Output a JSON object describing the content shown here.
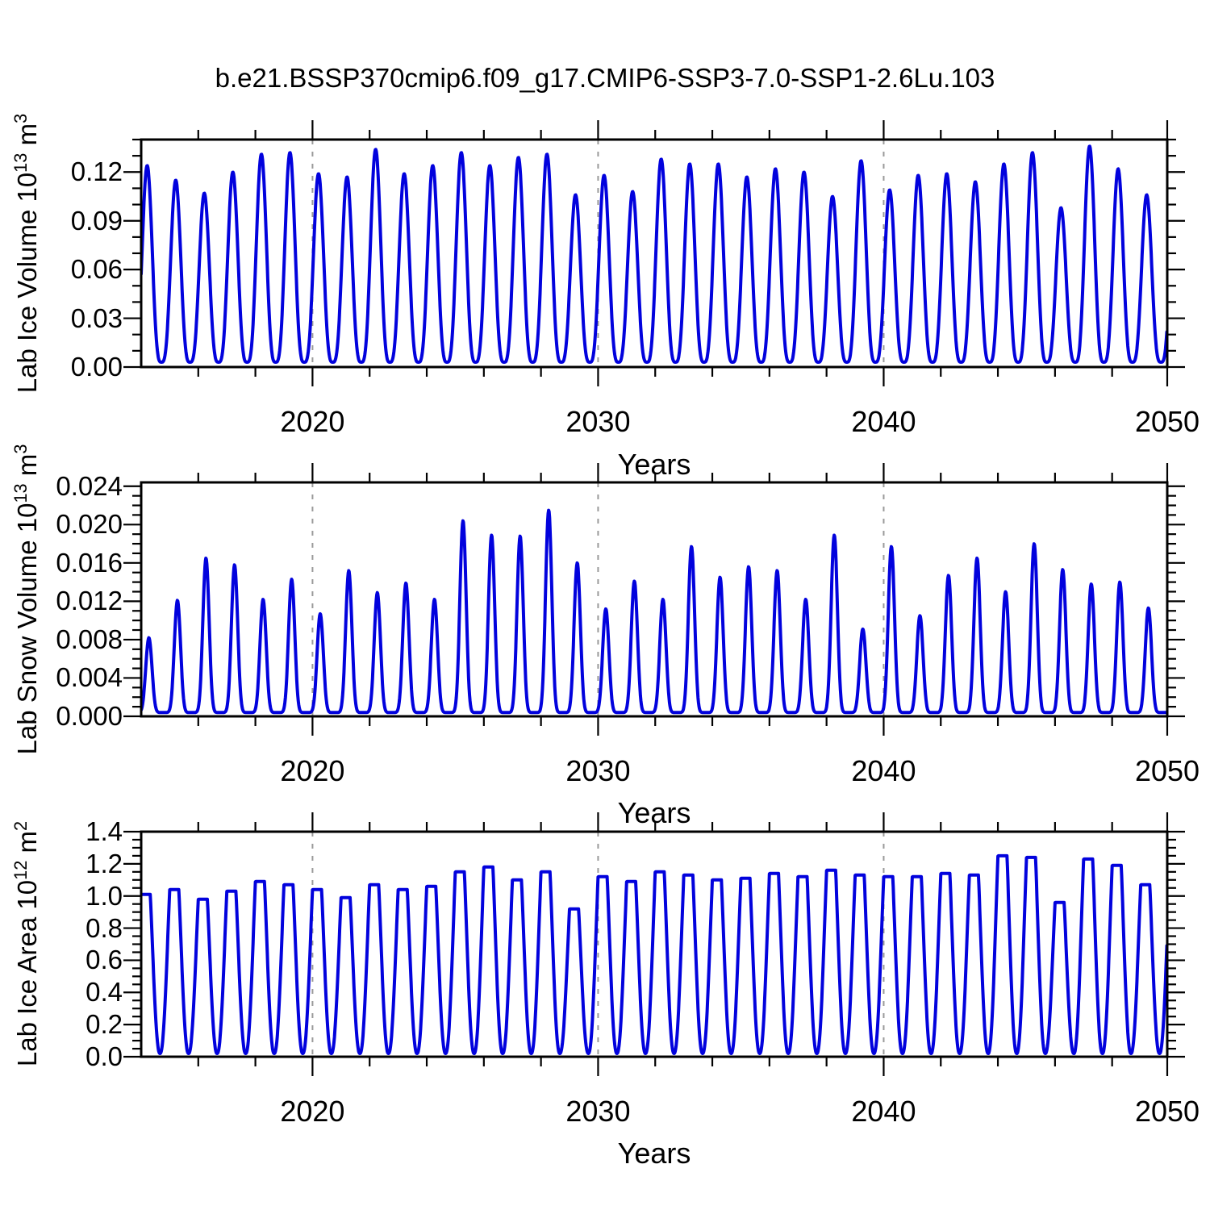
{
  "title": "b.e21.BSSP370cmip6.f09_g17.CMIP6-SSP3-7.0-SSP1-2.6Lu.103",
  "figure": {
    "background": "#ffffff",
    "line_color": "#0202dd",
    "grid_color": "#9a9a9a",
    "axis_color": "#000000"
  },
  "xaxis": {
    "label": "Years",
    "tick_labels": [
      "2020",
      "2030",
      "2040",
      "2050"
    ],
    "tick_values": [
      2020,
      2030,
      2040,
      2050
    ],
    "minor_tick_years": [
      2016,
      2018,
      2022,
      2024,
      2026,
      2028,
      2032,
      2034,
      2036,
      2038,
      2042,
      2044,
      2046,
      2048
    ],
    "grid_years": [
      2020,
      2030,
      2040
    ],
    "xlim": [
      2014,
      2049.93
    ]
  },
  "chart_data": [
    {
      "type": "line",
      "ylabel": "Lab Ice Volume 10^13 m^3",
      "ylabel_parts": {
        "base": "Lab Ice Volume 10",
        "exp": "13",
        "unit": " m",
        "unit_exp": "3"
      },
      "xlabel": "Years",
      "ylim": [
        0,
        0.14
      ],
      "ytick_values": [
        0.0,
        0.03,
        0.06,
        0.09,
        0.12
      ],
      "ytick_labels": [
        "0.00",
        "0.03",
        "0.06",
        "0.09",
        "0.12"
      ],
      "ymajor_step": 0.03,
      "yminor_step": 0.01,
      "x_years": [
        2014,
        2015,
        2016,
        2017,
        2018,
        2019,
        2020,
        2021,
        2022,
        2023,
        2024,
        2025,
        2026,
        2027,
        2028,
        2029,
        2030,
        2031,
        2032,
        2033,
        2034,
        2035,
        2036,
        2037,
        2038,
        2039,
        2040,
        2041,
        2042,
        2043,
        2044,
        2045,
        2046,
        2047,
        2048,
        2049
      ],
      "annual_max": [
        0.124,
        0.115,
        0.107,
        0.12,
        0.131,
        0.132,
        0.119,
        0.117,
        0.134,
        0.119,
        0.124,
        0.132,
        0.124,
        0.129,
        0.131,
        0.106,
        0.118,
        0.108,
        0.128,
        0.125,
        0.125,
        0.117,
        0.122,
        0.12,
        0.105,
        0.127,
        0.109,
        0.118,
        0.119,
        0.114,
        0.125,
        0.132,
        0.098,
        0.136,
        0.122,
        0.106
      ],
      "annual_min": 0.003,
      "season_phase": 0.21,
      "season_sharpness": 1.7,
      "shape": "power"
    },
    {
      "type": "line",
      "ylabel": "Lab Snow Volume 10^13 m^3",
      "ylabel_parts": {
        "base": "Lab Snow Volume 10",
        "exp": "13",
        "unit": " m",
        "unit_exp": "3"
      },
      "xlabel": "Years",
      "ylim": [
        0,
        0.0244
      ],
      "ytick_values": [
        0.0,
        0.004,
        0.008,
        0.012,
        0.016,
        0.02,
        0.024
      ],
      "ytick_labels": [
        "0.000",
        "0.004",
        "0.008",
        "0.012",
        "0.016",
        "0.020",
        "0.024"
      ],
      "ymajor_step": 0.004,
      "yminor_step": 0.001,
      "x_years": [
        2014,
        2015,
        2016,
        2017,
        2018,
        2019,
        2020,
        2021,
        2022,
        2023,
        2024,
        2025,
        2026,
        2027,
        2028,
        2029,
        2030,
        2031,
        2032,
        2033,
        2034,
        2035,
        2036,
        2037,
        2038,
        2039,
        2040,
        2041,
        2042,
        2043,
        2044,
        2045,
        2046,
        2047,
        2048,
        2049
      ],
      "annual_max": [
        0.0082,
        0.0121,
        0.0165,
        0.0158,
        0.0122,
        0.0143,
        0.0107,
        0.0152,
        0.0129,
        0.0139,
        0.0122,
        0.0204,
        0.0189,
        0.0188,
        0.0215,
        0.016,
        0.0112,
        0.0141,
        0.0122,
        0.0177,
        0.0145,
        0.0156,
        0.0152,
        0.0122,
        0.0189,
        0.0091,
        0.0177,
        0.0105,
        0.0147,
        0.0165,
        0.013,
        0.018,
        0.0153,
        0.0138,
        0.014,
        0.0113
      ],
      "annual_min": 0.0004,
      "season_phase": 0.27,
      "season_sharpness": 4.2,
      "shape": "power"
    },
    {
      "type": "line",
      "ylabel": "Lab Ice Area 10^12 m^2",
      "ylabel_parts": {
        "base": "Lab Ice Area 10",
        "exp": "12",
        "unit": " m",
        "unit_exp": "2"
      },
      "xlabel": "Years",
      "ylim": [
        0,
        1.4
      ],
      "ytick_values": [
        0.0,
        0.2,
        0.4,
        0.6,
        0.8,
        1.0,
        1.2,
        1.4
      ],
      "ytick_labels": [
        "0.0",
        "0.2",
        "0.4",
        "0.6",
        "0.8",
        "1.0",
        "1.2",
        "1.4"
      ],
      "ymajor_step": 0.2,
      "yminor_step": 0.05,
      "x_years": [
        2014,
        2015,
        2016,
        2017,
        2018,
        2019,
        2020,
        2021,
        2022,
        2023,
        2024,
        2025,
        2026,
        2027,
        2028,
        2029,
        2030,
        2031,
        2032,
        2033,
        2034,
        2035,
        2036,
        2037,
        2038,
        2039,
        2040,
        2041,
        2042,
        2043,
        2044,
        2045,
        2046,
        2047,
        2048,
        2049
      ],
      "annual_max": [
        1.01,
        1.04,
        0.98,
        1.03,
        1.09,
        1.07,
        1.04,
        0.99,
        1.07,
        1.04,
        1.06,
        1.15,
        1.18,
        1.1,
        1.15,
        0.92,
        1.12,
        1.09,
        1.15,
        1.13,
        1.1,
        1.11,
        1.14,
        1.12,
        1.16,
        1.13,
        1.12,
        1.12,
        1.14,
        1.13,
        1.25,
        1.24,
        0.96,
        1.23,
        1.19,
        1.07
      ],
      "annual_min": 0.02,
      "season_phase": 0.16,
      "season_sharpness": 1.15,
      "shape": "clamped"
    }
  ]
}
